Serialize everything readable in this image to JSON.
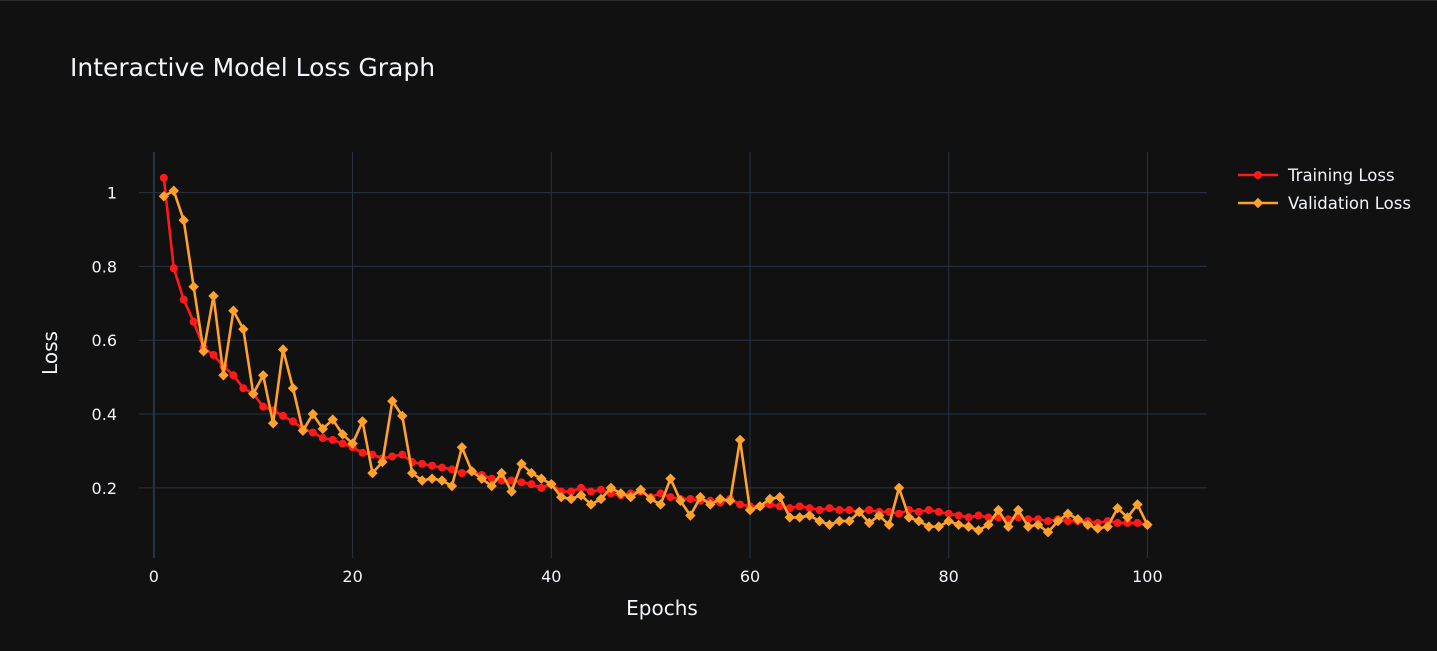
{
  "chart_data": {
    "type": "line",
    "title": "Interactive Model Loss Graph",
    "xlabel": "Epochs",
    "ylabel": "Loss",
    "xlim": [
      -1.5,
      106
    ],
    "ylim": [
      0.01,
      1.11
    ],
    "xticks": [
      0,
      20,
      40,
      60,
      80,
      100
    ],
    "xtick_labels": [
      "0",
      "20",
      "40",
      "60",
      "80",
      "100"
    ],
    "yticks": [
      0.2,
      0.4,
      0.6,
      0.8,
      1.0
    ],
    "ytick_labels": [
      "0.2",
      "0.4",
      "0.6",
      "0.8",
      "1"
    ],
    "grid": true,
    "legend_position": "top-right",
    "background": "#111111",
    "grid_color": "#283442",
    "x": [
      1,
      2,
      3,
      4,
      5,
      6,
      7,
      8,
      9,
      10,
      11,
      12,
      13,
      14,
      15,
      16,
      17,
      18,
      19,
      20,
      21,
      22,
      23,
      24,
      25,
      26,
      27,
      28,
      29,
      30,
      31,
      32,
      33,
      34,
      35,
      36,
      37,
      38,
      39,
      40,
      41,
      42,
      43,
      44,
      45,
      46,
      47,
      48,
      49,
      50,
      51,
      52,
      53,
      54,
      55,
      56,
      57,
      58,
      59,
      60,
      61,
      62,
      63,
      64,
      65,
      66,
      67,
      68,
      69,
      70,
      71,
      72,
      73,
      74,
      75,
      76,
      77,
      78,
      79,
      80,
      81,
      82,
      83,
      84,
      85,
      86,
      87,
      88,
      89,
      90,
      91,
      92,
      93,
      94,
      95,
      96,
      97,
      98,
      99,
      100
    ],
    "series": [
      {
        "name": "Training Loss",
        "color": "#ff1a1a",
        "marker": "circle",
        "values": [
          1.04,
          0.795,
          0.71,
          0.65,
          0.58,
          0.56,
          0.53,
          0.505,
          0.47,
          0.455,
          0.42,
          0.41,
          0.395,
          0.38,
          0.36,
          0.35,
          0.335,
          0.33,
          0.32,
          0.31,
          0.295,
          0.29,
          0.28,
          0.285,
          0.29,
          0.27,
          0.265,
          0.26,
          0.255,
          0.25,
          0.24,
          0.245,
          0.235,
          0.225,
          0.22,
          0.22,
          0.215,
          0.21,
          0.2,
          0.21,
          0.19,
          0.19,
          0.2,
          0.19,
          0.195,
          0.185,
          0.18,
          0.185,
          0.19,
          0.175,
          0.185,
          0.175,
          0.17,
          0.17,
          0.165,
          0.165,
          0.16,
          0.17,
          0.155,
          0.15,
          0.15,
          0.155,
          0.15,
          0.145,
          0.15,
          0.145,
          0.14,
          0.145,
          0.14,
          0.14,
          0.135,
          0.14,
          0.135,
          0.135,
          0.13,
          0.14,
          0.135,
          0.14,
          0.135,
          0.13,
          0.125,
          0.12,
          0.125,
          0.12,
          0.12,
          0.115,
          0.12,
          0.115,
          0.115,
          0.11,
          0.115,
          0.11,
          0.11,
          0.11,
          0.105,
          0.11,
          0.105,
          0.105,
          0.105,
          0.1
        ]
      },
      {
        "name": "Validation Loss",
        "color": "#ffa12b",
        "marker": "diamond",
        "values": [
          0.99,
          1.005,
          0.925,
          0.745,
          0.57,
          0.72,
          0.505,
          0.68,
          0.63,
          0.455,
          0.505,
          0.375,
          0.575,
          0.47,
          0.355,
          0.4,
          0.36,
          0.385,
          0.345,
          0.32,
          0.38,
          0.24,
          0.27,
          0.435,
          0.395,
          0.24,
          0.22,
          0.225,
          0.22,
          0.205,
          0.31,
          0.245,
          0.225,
          0.205,
          0.24,
          0.19,
          0.265,
          0.24,
          0.225,
          0.21,
          0.175,
          0.17,
          0.18,
          0.155,
          0.17,
          0.2,
          0.185,
          0.175,
          0.195,
          0.17,
          0.155,
          0.225,
          0.165,
          0.125,
          0.175,
          0.155,
          0.17,
          0.165,
          0.33,
          0.14,
          0.15,
          0.17,
          0.175,
          0.12,
          0.12,
          0.125,
          0.11,
          0.1,
          0.11,
          0.11,
          0.135,
          0.105,
          0.125,
          0.1,
          0.2,
          0.12,
          0.11,
          0.095,
          0.095,
          0.11,
          0.1,
          0.095,
          0.085,
          0.1,
          0.14,
          0.095,
          0.14,
          0.095,
          0.1,
          0.08,
          0.11,
          0.13,
          0.115,
          0.1,
          0.09,
          0.095,
          0.145,
          0.12,
          0.155,
          0.1
        ]
      }
    ]
  }
}
